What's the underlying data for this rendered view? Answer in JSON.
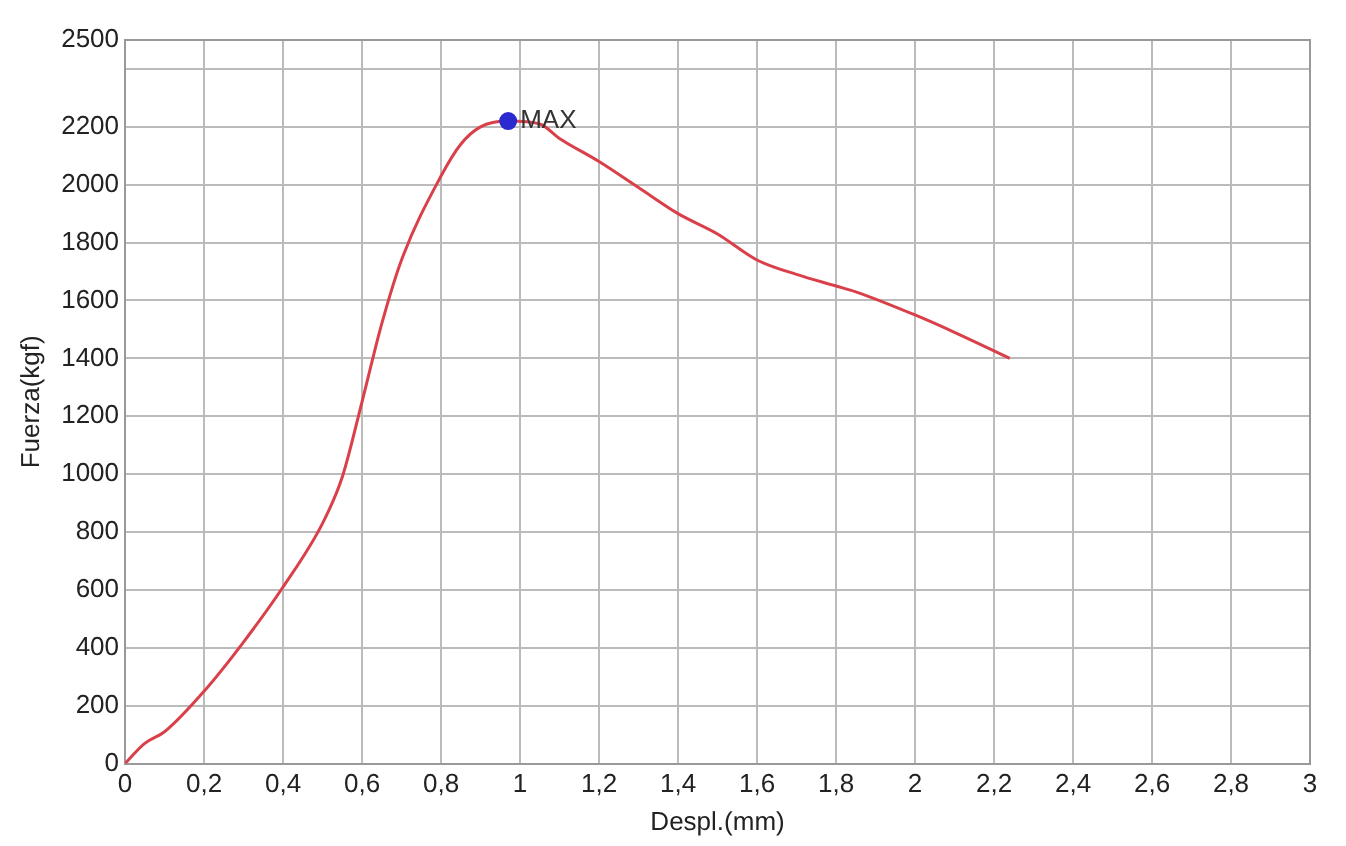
{
  "chart_data": {
    "type": "line",
    "xlabel": "Despl.(mm)",
    "ylabel": "Fuerza(kgf)",
    "xlim": [
      0,
      3
    ],
    "xticks": [
      0,
      {
        "value": 0.2,
        "label": "0,2"
      },
      {
        "value": 0.4,
        "label": "0,4"
      },
      {
        "value": 0.6,
        "label": "0,6"
      },
      {
        "value": 0.8,
        "label": "0,8"
      },
      1,
      {
        "value": 1.2,
        "label": "1,2"
      },
      {
        "value": 1.4,
        "label": "1,4"
      },
      {
        "value": 1.6,
        "label": "1,6"
      },
      {
        "value": 1.8,
        "label": "1,8"
      },
      2,
      {
        "value": 2.2,
        "label": "2,2"
      },
      {
        "value": 2.4,
        "label": "2,4"
      },
      {
        "value": 2.6,
        "label": "2,6"
      },
      {
        "value": 2.8,
        "label": "2,8"
      },
      3
    ],
    "ylim": [
      0,
      2500
    ],
    "yticks": [
      0,
      200,
      400,
      600,
      800,
      1000,
      1200,
      1400,
      1600,
      1800,
      2000,
      2200,
      {
        "value": 2400,
        "label": null
      },
      2500
    ],
    "grid": true,
    "legend": false,
    "marker": "none",
    "line_style": "solid",
    "series": [
      {
        "color": "#d9404a",
        "x": [
          0,
          0.02,
          0.05,
          0.1,
          0.2,
          0.3,
          0.4,
          0.5,
          0.55,
          0.6,
          0.65,
          0.7,
          0.8,
          0.85,
          0.9,
          0.97,
          1.05,
          1.1,
          1.2,
          1.3,
          1.4,
          1.5,
          1.6,
          1.7,
          1.8,
          1.85,
          2.0,
          2.1,
          2.24
        ],
        "values": [
          0,
          30,
          70,
          110,
          250,
          420,
          610,
          830,
          990,
          1250,
          1520,
          1740,
          2030,
          2140,
          2200,
          2220,
          2210,
          2160,
          2080,
          1990,
          1900,
          1830,
          1740,
          1690,
          1650,
          1630,
          1550,
          1490,
          1400
        ]
      },
      {
        "type": "scatter",
        "marker": "circle",
        "color": "#2a2ad0",
        "x": [
          0.97
        ],
        "values": [
          2220
        ]
      }
    ],
    "annotations": [
      {
        "text": "MAX",
        "x": 0.97,
        "y": 2220
      }
    ]
  }
}
